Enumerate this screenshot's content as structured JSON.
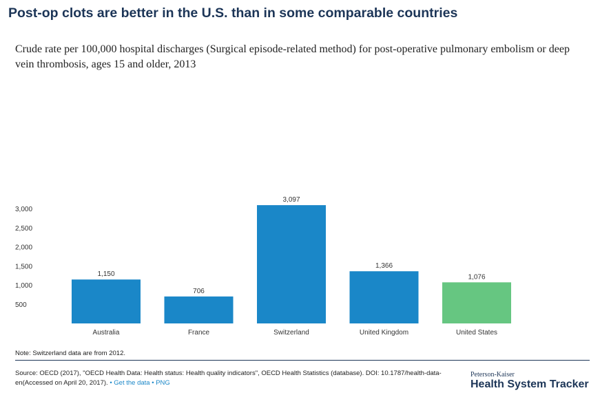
{
  "title": "Post-op clots are better in the U.S. than in some comparable countries",
  "subtitle": "Crude rate per 100,000 hospital discharges (Surgical episode-related method) for post-operative pulmonary embolism or deep vein thrombosis, ages 15 and older, 2013",
  "note": "Note: Switzerland data are from 2012.",
  "source": {
    "text": "Source: OECD (2017), \"OECD Health Data: Health status: Health quality indicators\", OECD Health Statistics (database). DOI: 10.1787/health-data-en(Accessed on April 20, 2017).",
    "separator": "•",
    "get_data_label": "Get the data",
    "png_label": "PNG"
  },
  "brand": {
    "top": "Peterson-Kaiser",
    "main": "Health System Tracker"
  },
  "chart_data": {
    "type": "bar",
    "categories": [
      "Australia",
      "France",
      "Switzerland",
      "United Kingdom",
      "United States"
    ],
    "values": [
      1150,
      706,
      3097,
      1366,
      1076
    ],
    "value_labels": [
      "1,150",
      "706",
      "3,097",
      "1,366",
      "1,076"
    ],
    "yticks": [
      500,
      1000,
      1500,
      2000,
      2500,
      3000
    ],
    "ytick_labels": [
      "500",
      "1,000",
      "1,500",
      "2,000",
      "2,500",
      "3,000"
    ],
    "ylim": [
      0,
      3000
    ],
    "grid": false,
    "colors": [
      "#1a87c8",
      "#1a87c8",
      "#1a87c8",
      "#1a87c8",
      "#66c681"
    ]
  }
}
